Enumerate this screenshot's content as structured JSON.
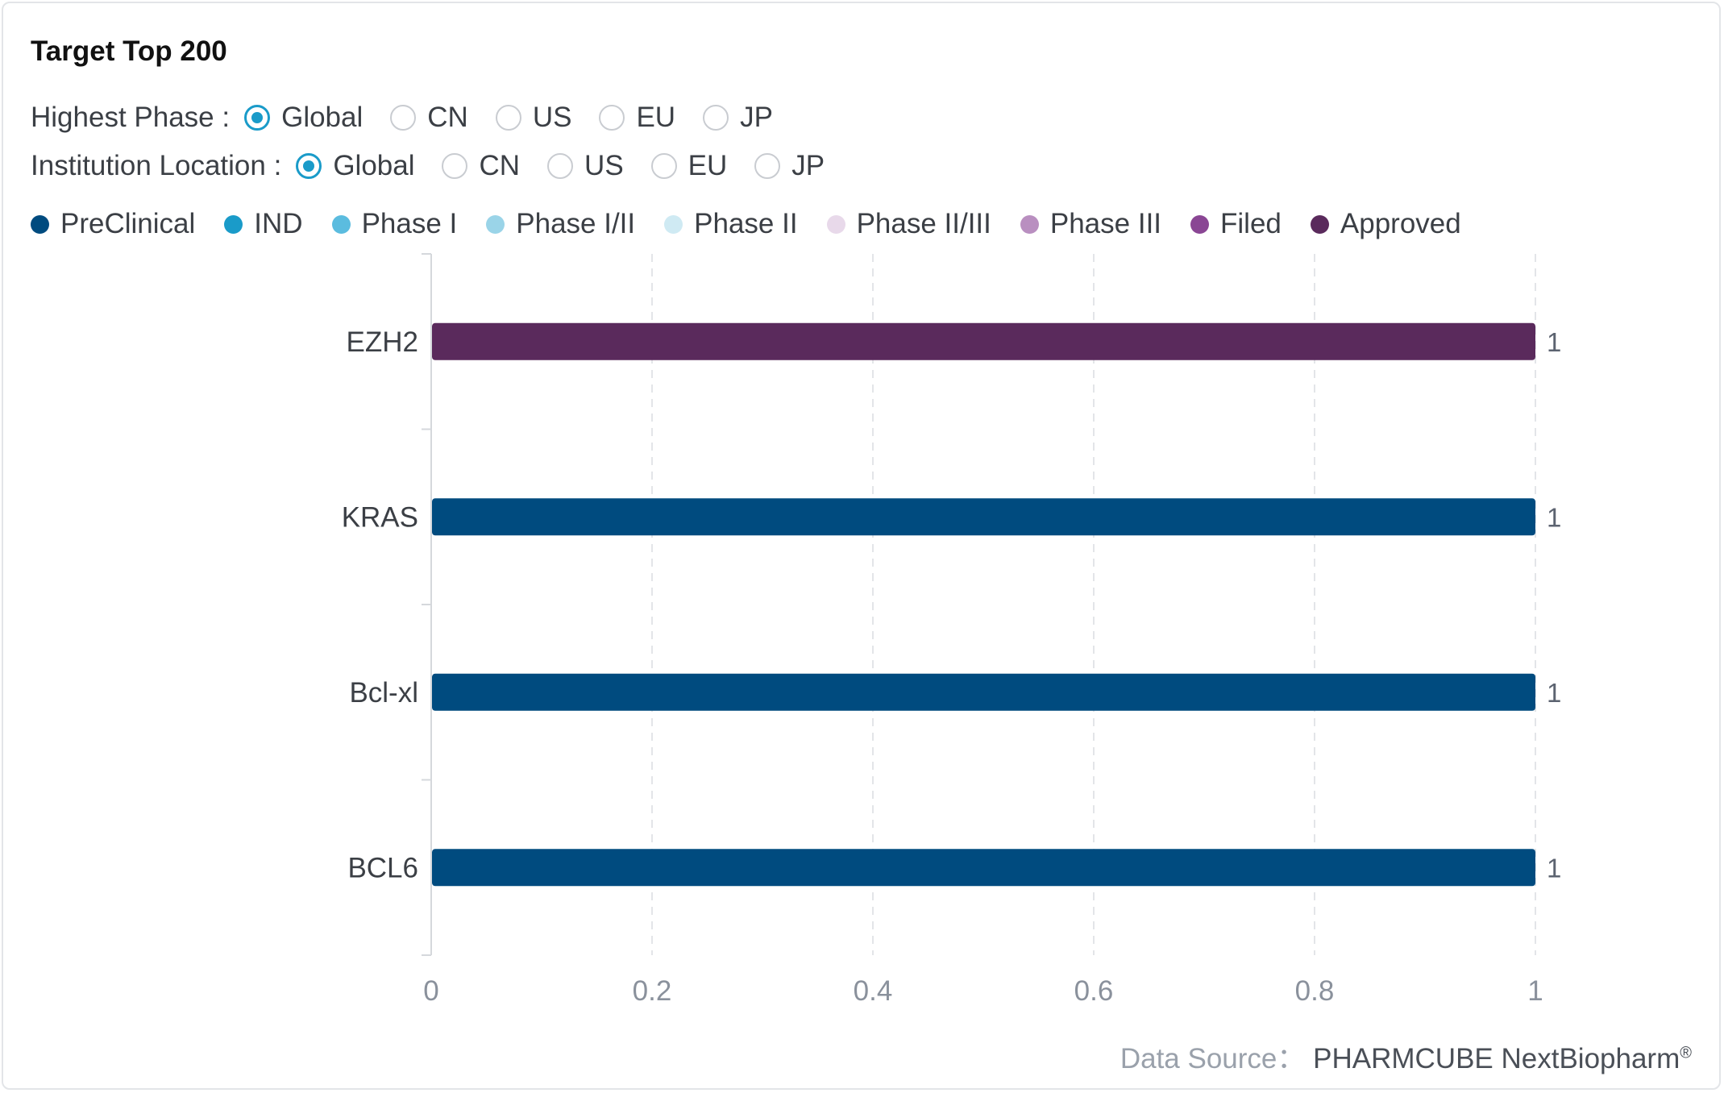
{
  "title": "Target Top 200",
  "filters": {
    "highest_phase": {
      "label": "Highest Phase :",
      "options": [
        "Global",
        "CN",
        "US",
        "EU",
        "JP"
      ],
      "selected": "Global"
    },
    "institution_location": {
      "label": "Institution Location :",
      "options": [
        "Global",
        "CN",
        "US",
        "EU",
        "JP"
      ],
      "selected": "Global"
    }
  },
  "legend": [
    {
      "name": "PreClinical",
      "color": "#004b7f"
    },
    {
      "name": "IND",
      "color": "#1a9bc9"
    },
    {
      "name": "Phase I",
      "color": "#5bbcdf"
    },
    {
      "name": "Phase I/II",
      "color": "#9ad4e8"
    },
    {
      "name": "Phase II",
      "color": "#cfeaf3"
    },
    {
      "name": "Phase II/III",
      "color": "#e8d9ea"
    },
    {
      "name": "Phase III",
      "color": "#b98fc0"
    },
    {
      "name": "Filed",
      "color": "#8a4694"
    },
    {
      "name": "Approved",
      "color": "#5a2a5c"
    }
  ],
  "chart_data": {
    "type": "bar",
    "orientation": "horizontal",
    "categories": [
      "EZH2",
      "KRAS",
      "Bcl-xl",
      "BCL6"
    ],
    "values": [
      1,
      1,
      1,
      1
    ],
    "bar_phases": [
      "Approved",
      "PreClinical",
      "PreClinical",
      "PreClinical"
    ],
    "xlim": [
      0,
      1
    ],
    "x_ticks": [
      "0",
      "0.2",
      "0.4",
      "0.6",
      "0.8",
      "1"
    ],
    "data_labels": [
      "1",
      "1",
      "1",
      "1"
    ],
    "grid": "vertical-dashed"
  },
  "source": {
    "label": "Data Source：",
    "value": "PHARMCUBE NextBiopharm",
    "mark": "®"
  }
}
